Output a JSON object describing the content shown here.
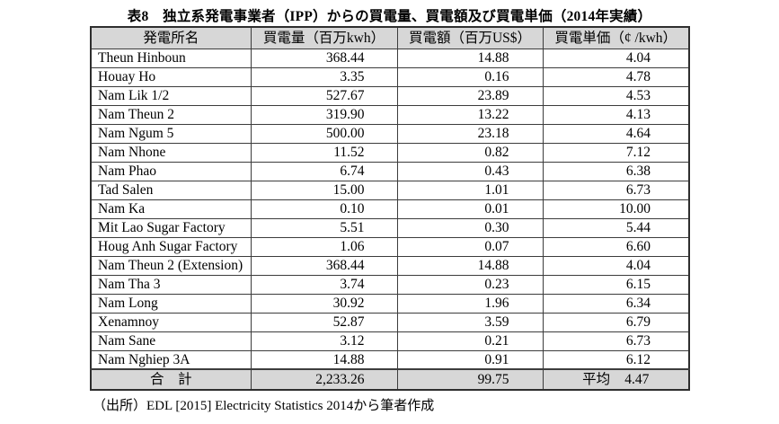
{
  "title": "表8　独立系発電事業者（IPP）からの買電量、買電額及び買電単価（2014年実績）",
  "table": {
    "columns": [
      "発電所名",
      "買電量（百万kwh）",
      "買電額（百万US$）",
      "買電単価（¢ /kwh）"
    ],
    "rows": [
      {
        "name": "Theun Hinboun",
        "volume": "368.44",
        "amount": "14.88",
        "price": "4.04"
      },
      {
        "name": "Houay Ho",
        "volume": "3.35",
        "amount": "0.16",
        "price": "4.78"
      },
      {
        "name": "Nam Lik 1/2",
        "volume": "527.67",
        "amount": "23.89",
        "price": "4.53"
      },
      {
        "name": "Nam Theun 2",
        "volume": "319.90",
        "amount": "13.22",
        "price": "4.13"
      },
      {
        "name": "Nam Ngum 5",
        "volume": "500.00",
        "amount": "23.18",
        "price": "4.64"
      },
      {
        "name": "Nam Nhone",
        "volume": "11.52",
        "amount": "0.82",
        "price": "7.12"
      },
      {
        "name": "Nam Phao",
        "volume": "6.74",
        "amount": "0.43",
        "price": "6.38"
      },
      {
        "name": "Tad Salen",
        "volume": "15.00",
        "amount": "1.01",
        "price": "6.73"
      },
      {
        "name": "Nam Ka",
        "volume": "0.10",
        "amount": "0.01",
        "price": "10.00"
      },
      {
        "name": "Mit Lao Sugar Factory",
        "volume": "5.51",
        "amount": "0.30",
        "price": "5.44"
      },
      {
        "name": "Houg Anh Sugar Factory",
        "volume": "1.06",
        "amount": "0.07",
        "price": "6.60"
      },
      {
        "name": "Nam Theun 2 (Extension)",
        "volume": "368.44",
        "amount": "14.88",
        "price": "4.04"
      },
      {
        "name": "Nam Tha 3",
        "volume": "3.74",
        "amount": "0.23",
        "price": "6.15"
      },
      {
        "name": "Nam Long",
        "volume": "30.92",
        "amount": "1.96",
        "price": "6.34"
      },
      {
        "name": "Xenamnoy",
        "volume": "52.87",
        "amount": "3.59",
        "price": "6.79"
      },
      {
        "name": "Nam Sane",
        "volume": "3.12",
        "amount": "0.21",
        "price": "6.73"
      },
      {
        "name": "Nam Nghiep 3A",
        "volume": "14.88",
        "amount": "0.91",
        "price": "6.12"
      }
    ],
    "total": {
      "label": "合　計",
      "volume": "2,233.26",
      "amount": "99.75",
      "price_label": "平均",
      "price": "4.47"
    }
  },
  "source": "（出所）EDL [2015] Electricity Statistics 2014から筆者作成",
  "colors": {
    "page_bg": "#ffffff",
    "header_fill": "#d7d7d7",
    "total_fill": "#d7d7d7",
    "border_inner": "#3c3c3c",
    "border_outer": "#2e2e2e",
    "text": "#000000"
  }
}
